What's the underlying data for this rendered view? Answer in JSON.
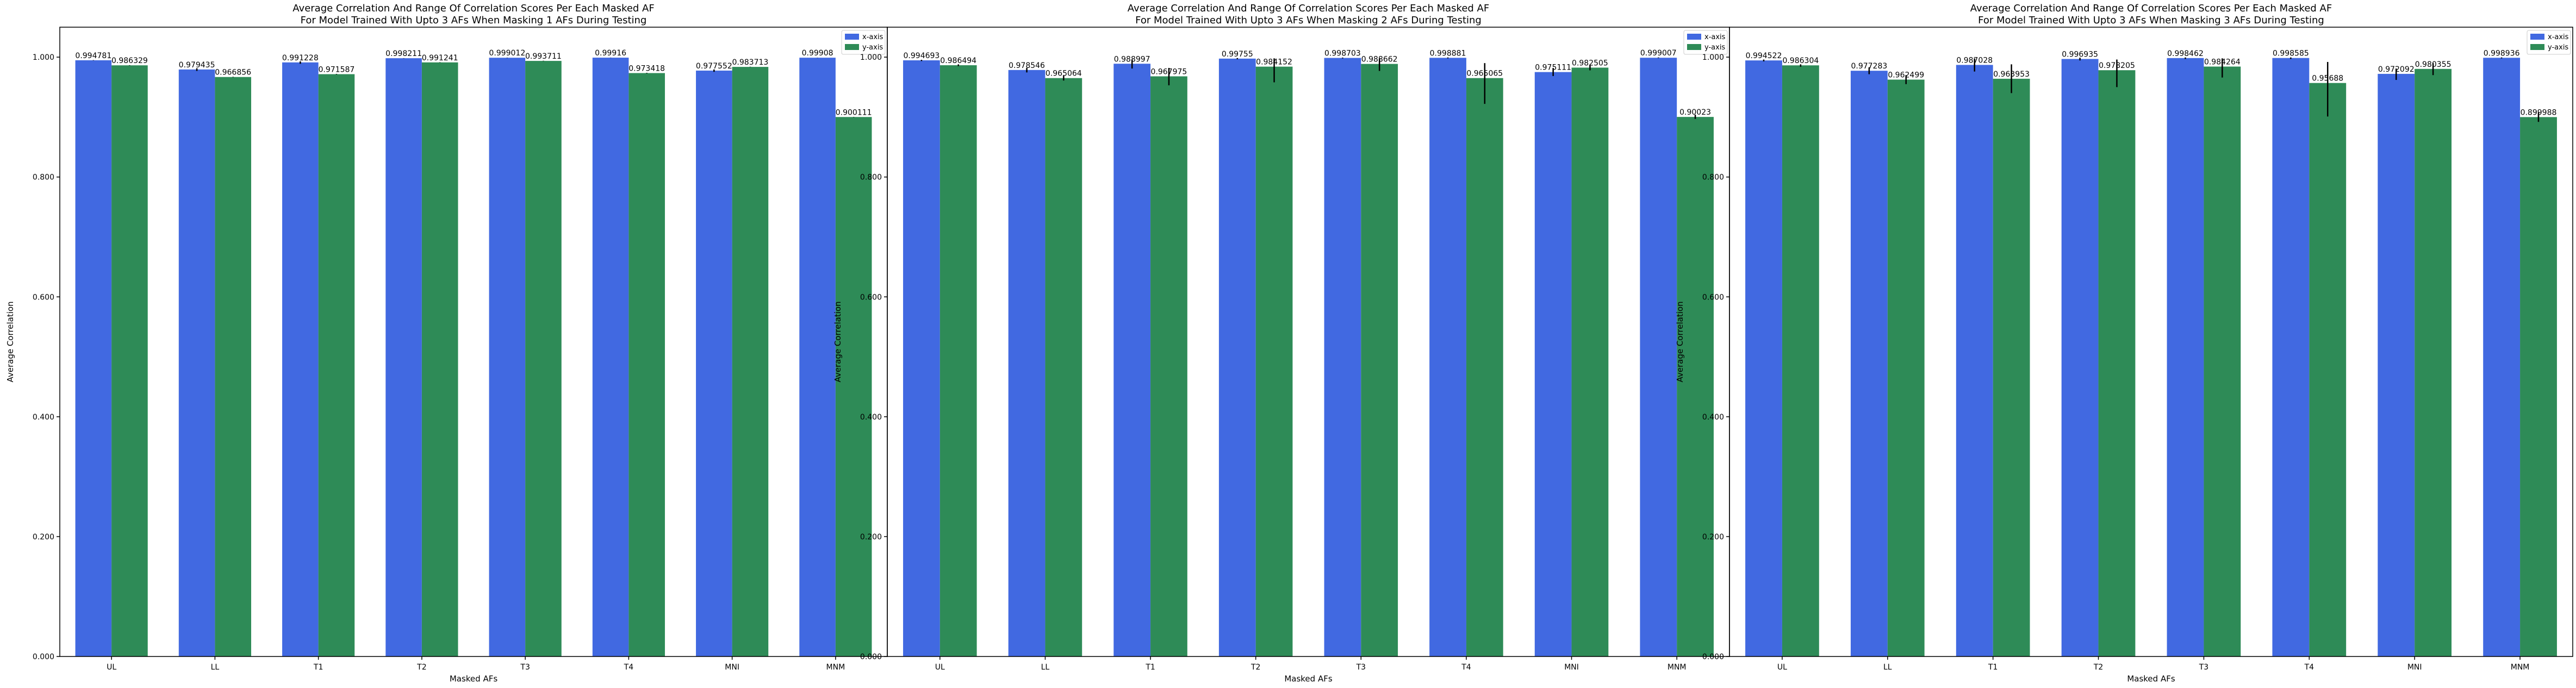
{
  "colors": {
    "x_axis": "#4169e1",
    "y_axis": "#2e8b57",
    "error_bar": "#000000",
    "axes": "#000000"
  },
  "chart_data": [
    {
      "type": "bar",
      "title": "Average Correlation And Range Of Correlation Scores Per Each Masked AF",
      "subtitle": "For Model Trained With Upto 3 AFs When Masking 1 AFs During Testing",
      "xlabel": "Masked AFs",
      "ylabel": "Average Correlation",
      "ylim": [
        0,
        1.05
      ],
      "yticks": [
        "0.000",
        "0.200",
        "0.400",
        "0.600",
        "0.800",
        "1.000"
      ],
      "categories": [
        "UL",
        "LL",
        "T1",
        "T2",
        "T3",
        "T4",
        "MNI",
        "MNM"
      ],
      "legend_position": "top-right",
      "series": [
        {
          "name": "x-axis",
          "values": [
            0.994781,
            0.979435,
            0.991228,
            0.998211,
            0.999012,
            0.99916,
            0.977552,
            0.99908
          ],
          "labels": [
            "0.994781",
            "0.979435",
            "0.991228",
            "0.998211",
            "0.999012",
            "0.99916",
            "0.977552",
            "0.99908"
          ],
          "err_low": [
            0.9945,
            0.977,
            0.989,
            0.998,
            0.9988,
            0.999,
            0.9755,
            0.9989
          ],
          "err_high": [
            0.995,
            0.9815,
            0.993,
            0.9984,
            0.9992,
            0.9993,
            0.9795,
            0.9992
          ]
        },
        {
          "name": "y-axis",
          "values": [
            0.986329,
            0.966856,
            0.971587,
            0.991241,
            0.993711,
            0.973418,
            0.983713,
            0.900111
          ],
          "labels": [
            "0.986329",
            "0.966856",
            "0.971587",
            "0.991241",
            "0.993711",
            "0.973418",
            "0.983713",
            "0.900111"
          ],
          "err_low": [
            0.986,
            0.9665,
            0.9712,
            0.991,
            0.9935,
            0.973,
            0.9835,
            0.8999
          ],
          "err_high": [
            0.9866,
            0.9672,
            0.972,
            0.9915,
            0.994,
            0.9738,
            0.984,
            0.9003
          ]
        }
      ]
    },
    {
      "type": "bar",
      "title": "Average Correlation And Range Of Correlation Scores Per Each Masked AF",
      "subtitle": "For Model Trained With Upto 3 AFs When Masking 2 AFs During Testing",
      "xlabel": "Masked AFs",
      "ylabel": "Average Correlation",
      "ylim": [
        0,
        1.05
      ],
      "yticks": [
        "0.000",
        "0.200",
        "0.400",
        "0.600",
        "0.800",
        "1.000"
      ],
      "categories": [
        "UL",
        "LL",
        "T1",
        "T2",
        "T3",
        "T4",
        "MNI",
        "MNM"
      ],
      "legend_position": "top-right",
      "series": [
        {
          "name": "x-axis",
          "values": [
            0.994693,
            0.978546,
            0.988997,
            0.99755,
            0.998703,
            0.998881,
            0.975111,
            0.999007
          ],
          "labels": [
            "0.994693",
            "0.978546",
            "0.988997",
            "0.99755",
            "0.998703",
            "0.998881",
            "0.975111",
            "0.999007"
          ],
          "err_low": [
            0.9935,
            0.9745,
            0.981,
            0.9965,
            0.998,
            0.998,
            0.9685,
            0.9985
          ],
          "err_high": [
            0.9955,
            0.982,
            0.996,
            0.9985,
            0.9993,
            0.9995,
            0.982,
            0.9995
          ]
        },
        {
          "name": "y-axis",
          "values": [
            0.986494,
            0.965064,
            0.967975,
            0.984152,
            0.988662,
            0.965065,
            0.982505,
            0.90023
          ],
          "labels": [
            "0.986494",
            "0.965064",
            "0.967975",
            "0.984152",
            "0.988662",
            "0.965065",
            "0.982505",
            "0.90023"
          ],
          "err_low": [
            0.985,
            0.961,
            0.953,
            0.958,
            0.977,
            0.922,
            0.978,
            0.897
          ],
          "err_high": [
            0.988,
            0.969,
            0.982,
            0.998,
            0.998,
            0.99,
            0.987,
            0.904
          ]
        }
      ]
    },
    {
      "type": "bar",
      "title": "Average Correlation And Range Of Correlation Scores Per Each Masked AF",
      "subtitle": "For Model Trained With Upto 3 AFs When Masking 3 AFs During Testing",
      "xlabel": "Masked AFs",
      "ylabel": "Average Correlation",
      "ylim": [
        0,
        1.05
      ],
      "yticks": [
        "0.000",
        "0.200",
        "0.400",
        "0.600",
        "0.800",
        "1.000"
      ],
      "categories": [
        "UL",
        "LL",
        "T1",
        "T2",
        "T3",
        "T4",
        "MNI",
        "MNM"
      ],
      "legend_position": "top-right",
      "series": [
        {
          "name": "x-axis",
          "values": [
            0.994522,
            0.977283,
            0.987028,
            0.996935,
            0.998462,
            0.998585,
            0.972092,
            0.998936
          ],
          "labels": [
            "0.994522",
            "0.977283",
            "0.987028",
            "0.996935",
            "0.998462",
            "0.998585",
            "0.972092",
            "0.998936"
          ],
          "err_low": [
            0.993,
            0.9715,
            0.976,
            0.9945,
            0.997,
            0.997,
            0.962,
            0.998
          ],
          "err_high": [
            0.996,
            0.983,
            0.998,
            0.999,
            0.9995,
            0.9995,
            0.981,
            0.9995
          ]
        },
        {
          "name": "y-axis",
          "values": [
            0.986304,
            0.962499,
            0.963953,
            0.978205,
            0.984264,
            0.95688,
            0.980355,
            0.899988
          ],
          "labels": [
            "0.986304",
            "0.962499",
            "0.963953",
            "0.978205",
            "0.984264",
            "0.95688",
            "0.980355",
            "0.899988"
          ],
          "err_low": [
            0.984,
            0.955,
            0.94,
            0.95,
            0.966,
            0.901,
            0.97,
            0.892
          ],
          "err_high": [
            0.988,
            0.97,
            0.988,
            0.996,
            0.998,
            0.992,
            0.99,
            0.908
          ]
        }
      ]
    }
  ]
}
